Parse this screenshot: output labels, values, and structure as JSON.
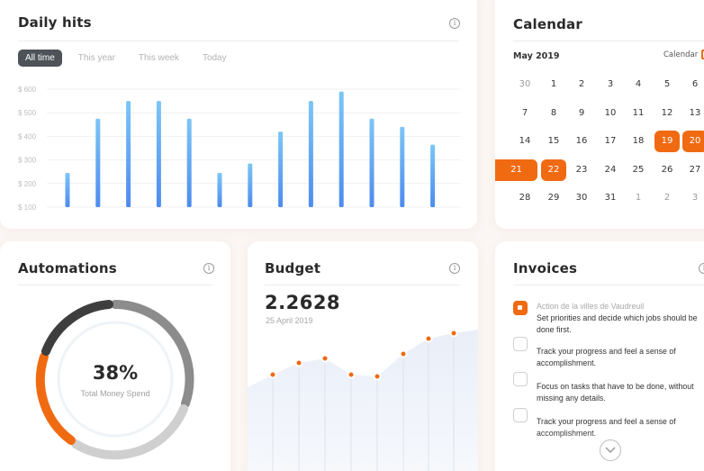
{
  "daily_hits": {
    "title": "Daily hits",
    "filters": [
      "All time",
      "This year",
      "This week",
      "Today"
    ],
    "active_filter": "All time"
  },
  "chart_data": {
    "type": "bar",
    "title": "Daily hits",
    "y_ticks": [
      "$ 600",
      "$ 500",
      "$ 400",
      "$ 300",
      "$ 200",
      "$ 100"
    ],
    "ylim": [
      100,
      600
    ],
    "values": [
      245,
      475,
      550,
      550,
      475,
      245,
      285,
      420,
      550,
      590,
      475,
      440,
      365
    ],
    "grid": true,
    "bar_color_top": "#79c4f5",
    "bar_color_bottom": "#4f8ff0"
  },
  "calendar": {
    "title": "Calendar",
    "month": "May 2019",
    "link_label": "Calendar",
    "accent": "#f06a12",
    "weeks": [
      [
        {
          "d": "30",
          "m": true
        },
        {
          "d": "1"
        },
        {
          "d": "2"
        },
        {
          "d": "3"
        },
        {
          "d": "4"
        },
        {
          "d": "5"
        },
        {
          "d": "6"
        }
      ],
      [
        {
          "d": "7"
        },
        {
          "d": "8"
        },
        {
          "d": "9"
        },
        {
          "d": "10"
        },
        {
          "d": "11"
        },
        {
          "d": "12"
        },
        {
          "d": "13"
        }
      ],
      [
        {
          "d": "14"
        },
        {
          "d": "15"
        },
        {
          "d": "16"
        },
        {
          "d": "17"
        },
        {
          "d": "18"
        },
        {
          "d": "19",
          "s": "sel"
        },
        {
          "d": "20",
          "s": "sel"
        }
      ],
      [
        {
          "d": "21",
          "s": "range"
        },
        {
          "d": "22",
          "s": "sel"
        },
        {
          "d": "23"
        },
        {
          "d": "24"
        },
        {
          "d": "25"
        },
        {
          "d": "26"
        },
        {
          "d": "27"
        }
      ],
      [
        {
          "d": "28"
        },
        {
          "d": "29"
        },
        {
          "d": "30"
        },
        {
          "d": "31"
        },
        {
          "d": "1",
          "m": true
        },
        {
          "d": "2",
          "m": true
        },
        {
          "d": "3",
          "m": true
        }
      ]
    ]
  },
  "automations": {
    "title": "Automations",
    "percent_label": "38%",
    "percent": 38,
    "subtitle": "Total Money Spend"
  },
  "budget": {
    "title": "Budget",
    "value": "2.2628",
    "date": "25 April 2019",
    "series": [
      418,
      405,
      400,
      418,
      420,
      395,
      378,
      372
    ],
    "line_color": "#f06a12"
  },
  "invoices": {
    "title": "Invoices",
    "tasks": [
      {
        "meta": "Action de la villes de Vaudreuil",
        "text": "Set priorities and decide which jobs should be done first.",
        "checked": true
      },
      {
        "meta": "",
        "text": "Track your progress and feel a sense of accomplishment.",
        "checked": false
      },
      {
        "meta": "",
        "text": "Focus on tasks that have to be done, without missing any details.",
        "checked": false
      },
      {
        "meta": "",
        "text": "Track your progress and feel a sense of accomplishment.",
        "checked": false
      }
    ]
  }
}
